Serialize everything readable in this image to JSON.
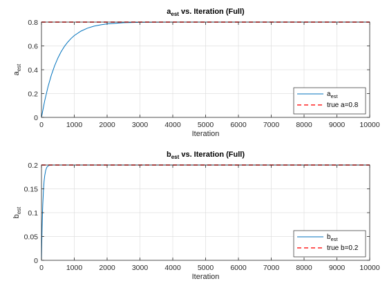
{
  "chart_data": [
    {
      "type": "line",
      "title": {
        "main": "a",
        "sub": "est",
        "rest": " vs. Iteration (Full)"
      },
      "xlabel": "Iteration",
      "ylabel": {
        "main": "a",
        "sub": "est"
      },
      "xlim": [
        0,
        10000
      ],
      "ylim": [
        0,
        0.8
      ],
      "xticks": [
        0,
        1000,
        2000,
        3000,
        4000,
        5000,
        6000,
        7000,
        8000,
        9000,
        10000
      ],
      "yticks": [
        0,
        0.2,
        0.4,
        0.6,
        0.8
      ],
      "ytick_labels": [
        "0",
        "0.2",
        "0.4",
        "0.6",
        "0.8"
      ],
      "grid": true,
      "legend_position": "bottom-right",
      "series": [
        {
          "legend": {
            "main": "a",
            "sub": "est"
          },
          "color": "#0072BD",
          "style": "solid",
          "x": [
            0,
            100,
            200,
            300,
            400,
            500,
            600,
            700,
            800,
            900,
            1000,
            1200,
            1400,
            1600,
            1800,
            2000,
            2500,
            3000,
            4000,
            5000,
            6000,
            7000,
            8000,
            9000,
            10000
          ],
          "y": [
            0,
            0.141,
            0.258,
            0.354,
            0.433,
            0.498,
            0.552,
            0.596,
            0.632,
            0.662,
            0.687,
            0.724,
            0.749,
            0.766,
            0.777,
            0.785,
            0.795,
            0.798,
            0.8,
            0.8,
            0.8,
            0.8,
            0.8,
            0.8,
            0.8
          ]
        },
        {
          "legend": {
            "main": "true a=0.8",
            "sub": ""
          },
          "color": "#FF3B3B",
          "style": "dashed",
          "x": [
            0,
            10000
          ],
          "y": [
            0.8,
            0.8
          ]
        }
      ]
    },
    {
      "type": "line",
      "title": {
        "main": "b",
        "sub": "est",
        "rest": " vs. Iteration (Full)"
      },
      "xlabel": "Iteration",
      "ylabel": {
        "main": "b",
        "sub": "est"
      },
      "xlim": [
        0,
        10000
      ],
      "ylim": [
        0,
        0.2
      ],
      "xticks": [
        0,
        1000,
        2000,
        3000,
        4000,
        5000,
        6000,
        7000,
        8000,
        9000,
        10000
      ],
      "yticks": [
        0,
        0.05,
        0.1,
        0.15,
        0.2
      ],
      "ytick_labels": [
        "0",
        "0.05",
        "0.1",
        "0.15",
        "0.2"
      ],
      "grid": true,
      "legend_position": "bottom-right",
      "series": [
        {
          "legend": {
            "main": "b",
            "sub": "est"
          },
          "color": "#0072BD",
          "style": "solid",
          "x": [
            0,
            10,
            20,
            30,
            40,
            60,
            80,
            100,
            130,
            160,
            200,
            250,
            300,
            400,
            500,
            1000,
            2000,
            5000,
            10000
          ],
          "y": [
            0,
            0.039,
            0.071,
            0.096,
            0.117,
            0.146,
            0.166,
            0.178,
            0.189,
            0.195,
            0.198,
            0.1995,
            0.2,
            0.2,
            0.2,
            0.2,
            0.2,
            0.2,
            0.2
          ]
        },
        {
          "legend": {
            "main": "true b=0.2",
            "sub": ""
          },
          "color": "#FF3B3B",
          "style": "dashed",
          "x": [
            0,
            10000
          ],
          "y": [
            0.2,
            0.2
          ]
        }
      ]
    }
  ]
}
